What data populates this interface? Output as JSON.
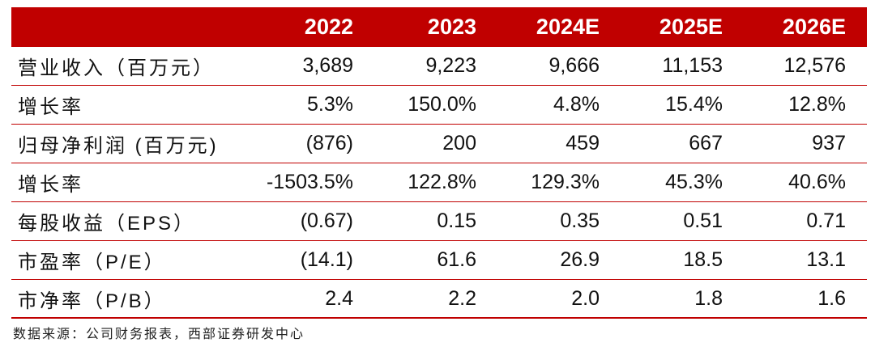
{
  "table": {
    "headers": [
      "2022",
      "2023",
      "2024E",
      "2025E",
      "2026E"
    ],
    "rows": [
      {
        "label": "营业收入（百万元）",
        "values": [
          "3,689",
          "9,223",
          "9,666",
          "11,153",
          "12,576"
        ]
      },
      {
        "label": "增长率",
        "values": [
          "5.3%",
          "150.0%",
          "4.8%",
          "15.4%",
          "12.8%"
        ]
      },
      {
        "label": "归母净利润 (百万元)",
        "values": [
          "(876)",
          "200",
          "459",
          "667",
          "937"
        ]
      },
      {
        "label": "增长率",
        "values": [
          "-1503.5%",
          "122.8%",
          "129.3%",
          "45.3%",
          "40.6%"
        ]
      },
      {
        "label": "每股收益（EPS）",
        "values": [
          "(0.67)",
          "0.15",
          "0.35",
          "0.51",
          "0.71"
        ]
      },
      {
        "label": "市盈率（P/E）",
        "values": [
          "(14.1)",
          "61.6",
          "26.9",
          "18.5",
          "13.1"
        ]
      },
      {
        "label": "市净率（P/B）",
        "values": [
          "2.4",
          "2.2",
          "2.0",
          "1.8",
          "1.6"
        ]
      }
    ]
  },
  "source": "数据来源：公司财务报表，西部证券研发中心",
  "colors": {
    "header_bg": "#c00000",
    "header_text": "#ffffff",
    "rule": "#c00000"
  }
}
